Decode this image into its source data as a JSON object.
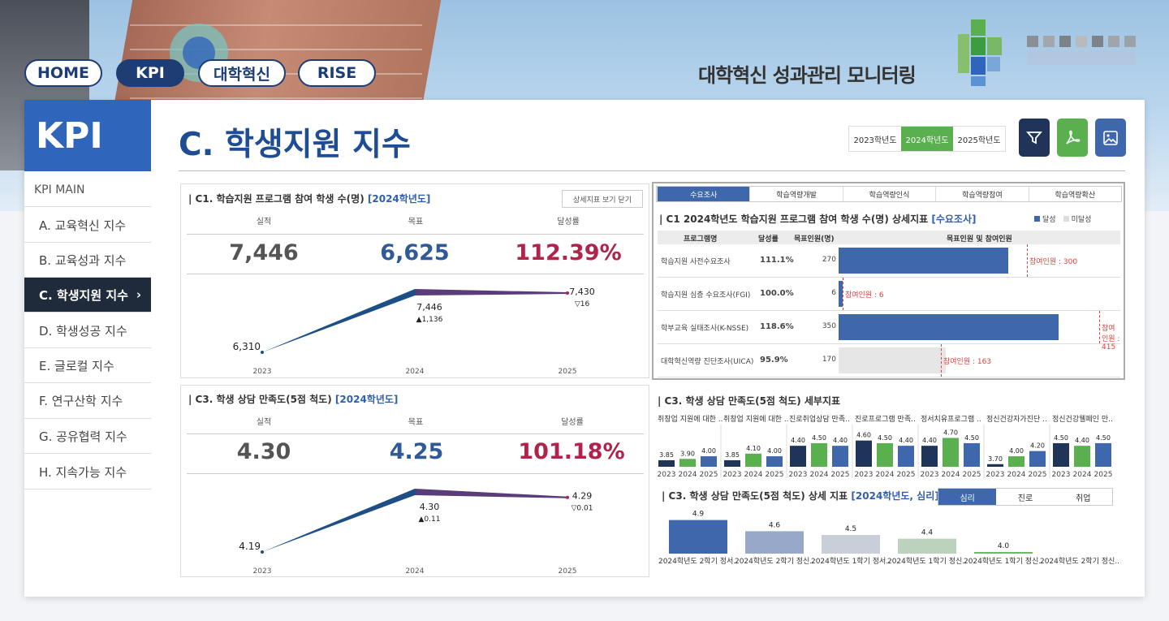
{
  "header": {
    "nav": [
      "HOME",
      "KPI",
      "대학혁신",
      "RISE"
    ],
    "site_title": "대학혁신 성과관리 모니터링"
  },
  "sidebar": {
    "title": "KPI",
    "main": "KPI MAIN",
    "items": [
      "A. 교육혁신 지수",
      "B. 교육성과 지수",
      "C. 학생지원 지수",
      "D. 학생성공 지수",
      "E. 글로컬 지수",
      "F. 연구산학 지수",
      "G. 공유협력 지수",
      "H. 지속가능 지수"
    ],
    "active_chevron": "›"
  },
  "page": {
    "title": "C. 학생지원 지수",
    "years": [
      "2023학년도",
      "2024학년도",
      "2025학년도"
    ],
    "selected_year": "2024학년도",
    "icons": [
      "filter-icon",
      "pdf-icon",
      "image-icon"
    ]
  },
  "c1": {
    "title": "| C1. 학습지원 프로그램 참여 학생 수(명)",
    "tag": "[2024학년도]",
    "close_btn": "상세지표 보기 닫기",
    "labels": [
      "실적",
      "목표",
      "달성률"
    ],
    "actual": "7,446",
    "target": "6,625",
    "rate": "112.39%",
    "trend": {
      "years": [
        "2023",
        "2024",
        "2025"
      ],
      "values": [
        "6,310",
        "7,446",
        "7,430"
      ],
      "deltas": [
        "",
        "▲1,136",
        "▽16"
      ]
    }
  },
  "c3": {
    "title": "| C3. 학생 상담 만족도(5점 척도)",
    "tag": "[2024학년도]",
    "labels": [
      "실적",
      "목표",
      "달성률"
    ],
    "actual": "4.30",
    "target": "4.25",
    "rate": "101.18%",
    "trend": {
      "years": [
        "2023",
        "2024",
        "2025"
      ],
      "values": [
        "4.19",
        "4.30",
        "4.29"
      ],
      "deltas": [
        "",
        "▲0.11",
        "▽0.01"
      ]
    }
  },
  "detail": {
    "tabs": [
      "수요조사",
      "학습역량개발",
      "학습역량인식",
      "학습역량참여",
      "학습역량확산"
    ],
    "title": "| C1 2024학년도 학습지원 프로그램 참여 학생 수(명) 상세지표",
    "tag": "[수요조사]",
    "legend": [
      "달성",
      "미달성"
    ],
    "columns": [
      "프로그램명",
      "달성률",
      "목표인원(명)",
      "목표인원 및 참여인원"
    ],
    "rows": [
      {
        "name": "학습지원 사전수요조사",
        "rate": "111.1%",
        "target": "270",
        "part_label": "참여인원 : 300"
      },
      {
        "name": "학습지원 심층 수요조사(FGI)",
        "rate": "100.0%",
        "target": "6",
        "part_label": "참여인원 : 6"
      },
      {
        "name": "학부교육 실태조사(K-NSSE)",
        "rate": "118.6%",
        "target": "350",
        "part_label": "참여인원 : 415"
      },
      {
        "name": "대학혁신역량 진단조사(UICA)",
        "rate": "95.9%",
        "target": "170",
        "part_label": "참여인원 : 163"
      }
    ]
  },
  "c3detail": {
    "title": "| C3. 학생 상담 만족도(5점 척도) 세부지표",
    "groups": [
      "취창업 지원에 대한 ..",
      "취창업 지원에 대한 ..",
      "진로취업상담 만족..",
      "진로프로그램 만족..",
      "정서치유프로그램 ..",
      "정신건강자가진단 ..",
      "정신건강웰페인 만.."
    ],
    "years": [
      "2023",
      "2024",
      "2025"
    ]
  },
  "c3sub": {
    "title": "| C3. 학생 상담 만족도(5점 척도) 상세 지표",
    "tag": "[2024학년도, 심리]",
    "tabs": [
      "심리",
      "진로",
      "취업"
    ]
  },
  "chart_data": [
    {
      "type": "line",
      "title": "C1. 학습지원 프로그램 참여 학생 수(명)",
      "x": [
        "2023",
        "2024",
        "2025"
      ],
      "series": [
        {
          "values": [
            6310,
            7446,
            7430
          ]
        }
      ]
    },
    {
      "type": "line",
      "title": "C3. 학생 상담 만족도(5점 척도)",
      "x": [
        "2023",
        "2024",
        "2025"
      ],
      "series": [
        {
          "values": [
            4.19,
            4.3,
            4.29
          ]
        }
      ]
    },
    {
      "type": "bar",
      "title": "C1 2024학년도 학습지원 프로그램 참여 학생 수(명) 상세지표",
      "categories": [
        "학습지원 사전수요조사",
        "학습지원 심층 수요조사(FGI)",
        "학부교육 실태조사(K-NSSE)",
        "대학혁신역량 진단조사(UICA)"
      ],
      "series": [
        {
          "name": "달성",
          "values": [
            270,
            6,
            350,
            0
          ]
        },
        {
          "name": "미달성",
          "values": [
            0,
            0,
            0,
            170
          ]
        }
      ],
      "participants": [
        300,
        6,
        415,
        163
      ],
      "xlim": [
        0,
        430
      ]
    },
    {
      "type": "bar",
      "title": "C3. 학생 상담 만족도(5점 척도) 세부지표",
      "categories": [
        "취창업 지원에 대한 ..",
        "취창업 지원에 대한 ..",
        "진로취업상담 만족..",
        "진로프로그램 만족..",
        "정서치유프로그램 ..",
        "정신건강자가진단 ..",
        "정신건강웰페인 만.."
      ],
      "x": [
        "2023",
        "2024",
        "2025"
      ],
      "values": [
        [
          3.85,
          3.9,
          4.0
        ],
        [
          3.85,
          4.1,
          4.0
        ],
        [
          4.4,
          4.5,
          4.4
        ],
        [
          4.6,
          4.5,
          4.4
        ],
        [
          4.4,
          4.7,
          4.5
        ],
        [
          3.7,
          4.0,
          4.2
        ],
        [
          4.5,
          4.4,
          4.5
        ]
      ],
      "ylim": [
        3.6,
        4.9
      ]
    },
    {
      "type": "bar",
      "title": "C3. 학생 상담 만족도(5점 척도) 상세 지표",
      "categories": [
        "2024학년도 2학기 정서..",
        "2024학년도 2학기 정신..",
        "2024학년도 1학기 정서..",
        "2024학년도 1학기 정신..",
        "2024학년도 1학기 정신..",
        "2024학년도 2학기 정신.."
      ],
      "values": [
        4.9,
        4.6,
        4.5,
        4.4,
        4.0,
        null
      ],
      "colors": [
        "#3e68ab",
        "#97a8c8",
        "#c9ced8",
        "#bcd2bc",
        "#6dbb5e",
        "#cccccc"
      ],
      "ylim": [
        4.0,
        5.0
      ]
    }
  ]
}
